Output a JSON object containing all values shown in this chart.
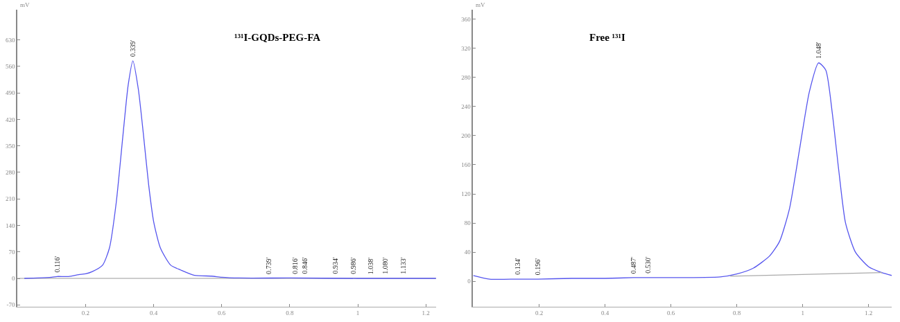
{
  "chart_data": [
    {
      "type": "line",
      "title": "¹³¹I-GQDs-PEG-FA",
      "ylabel": "mV",
      "xlim": [
        0,
        1.23
      ],
      "ylim": [
        -75,
        710
      ],
      "xticks": [
        0.2,
        0.4,
        0.6,
        0.8,
        1,
        1.2
      ],
      "yticks": [
        -70,
        0,
        70,
        140,
        210,
        280,
        350,
        420,
        490,
        560,
        630
      ],
      "grid": false,
      "marker": "none",
      "line_style": "solid",
      "series": [
        {
          "color": "#5555ee",
          "x": [
            0.02,
            0.06,
            0.1,
            0.116,
            0.15,
            0.18,
            0.2,
            0.22,
            0.25,
            0.27,
            0.29,
            0.31,
            0.325,
            0.339,
            0.355,
            0.37,
            0.385,
            0.4,
            0.42,
            0.45,
            0.48,
            0.52,
            0.57,
            0.6,
            0.65,
            0.8,
            1.0,
            1.23
          ],
          "values": [
            0,
            1,
            3,
            5,
            5,
            10,
            12,
            18,
            35,
            80,
            200,
            380,
            510,
            575,
            500,
            380,
            250,
            150,
            80,
            35,
            22,
            8,
            6,
            3,
            1,
            1,
            0,
            0
          ]
        }
      ],
      "ref_lines": [
        {
          "axis": "y",
          "value": 0,
          "color": "#999999"
        }
      ],
      "annotations": [
        {
          "text": "0.116'",
          "x": 0.116,
          "y": 5
        },
        {
          "text": "0.339'",
          "x": 0.339,
          "y": 575
        },
        {
          "text": "0.739'",
          "x": 0.739,
          "y": 1
        },
        {
          "text": "0.816'",
          "x": 0.816,
          "y": 1
        },
        {
          "text": "0.846'",
          "x": 0.846,
          "y": 1
        },
        {
          "text": "0.934'",
          "x": 0.934,
          "y": 1
        },
        {
          "text": "0.986'",
          "x": 0.986,
          "y": 0
        },
        {
          "text": "1.038'",
          "x": 1.038,
          "y": 0
        },
        {
          "text": "1.080'",
          "x": 1.08,
          "y": 0
        },
        {
          "text": "1.133'",
          "x": 1.133,
          "y": 0
        }
      ]
    },
    {
      "type": "line",
      "title": "Free ¹³¹I",
      "ylabel": "mV",
      "xlim": [
        0,
        1.27
      ],
      "ylim": [
        -35,
        373
      ],
      "xticks": [
        0.2,
        0.4,
        0.6,
        0.8,
        1,
        1.2
      ],
      "yticks": [
        0,
        40,
        80,
        120,
        160,
        200,
        240,
        280,
        320,
        360
      ],
      "grid": false,
      "marker": "none",
      "line_style": "solid",
      "series": [
        {
          "color": "#5555ee",
          "x": [
            0,
            0.05,
            0.134,
            0.196,
            0.3,
            0.4,
            0.487,
            0.53,
            0.6,
            0.75,
            0.8,
            0.85,
            0.9,
            0.93,
            0.96,
            0.99,
            1.02,
            1.048,
            1.07,
            1.09,
            1.11,
            1.13,
            1.16,
            1.2,
            1.24,
            1.27
          ],
          "values": [
            8,
            3,
            3,
            3,
            4,
            4,
            5,
            5,
            5,
            6,
            10,
            18,
            35,
            55,
            100,
            180,
            260,
            300,
            290,
            230,
            150,
            80,
            40,
            20,
            12,
            8
          ]
        },
        {
          "color": "#aaaaaa",
          "x": [
            0.78,
            1.24
          ],
          "values": [
            7,
            12
          ]
        }
      ],
      "annotations": [
        {
          "text": "0.134'",
          "x": 0.134,
          "y": 3
        },
        {
          "text": "0.196'",
          "x": 0.196,
          "y": 3
        },
        {
          "text": "0.487'",
          "x": 0.487,
          "y": 5
        },
        {
          "text": "0.530'",
          "x": 0.53,
          "y": 5
        },
        {
          "text": "1.048'",
          "x": 1.048,
          "y": 300
        }
      ]
    }
  ]
}
